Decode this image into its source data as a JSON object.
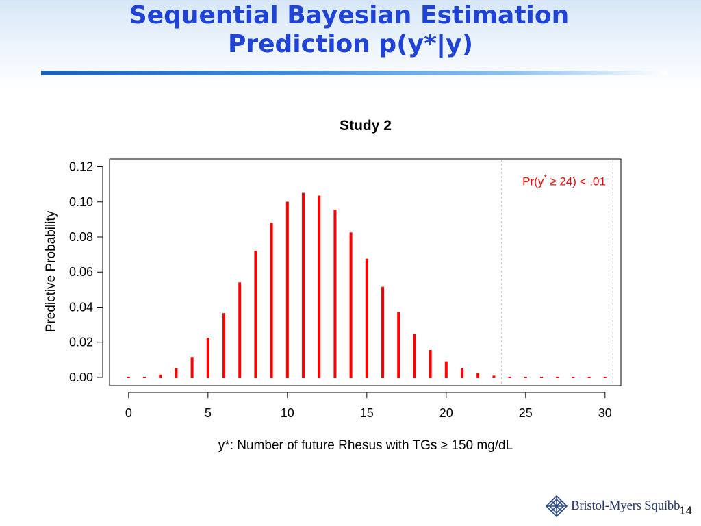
{
  "slide": {
    "title_line1": "Sequential Bayesian Estimation",
    "title_line2": "Prediction p(y*|y)",
    "page_number": "14"
  },
  "logo": {
    "text": "Bristol-Myers Squibb"
  },
  "colors": {
    "title": "#1f43d6",
    "bars": "#ff0000",
    "annotation": "#ff0000"
  },
  "chart_data": {
    "type": "bar",
    "title": "Study 2",
    "xlabel": "y*: Number of future Rhesus with TGs ≥ 150 mg/dL",
    "ylabel": "Predictive Probability",
    "x": [
      0,
      1,
      2,
      3,
      4,
      5,
      6,
      7,
      8,
      9,
      10,
      11,
      12,
      13,
      14,
      15,
      16,
      17,
      18,
      19,
      20,
      21,
      22,
      23,
      24,
      25,
      26,
      27,
      28,
      29,
      30
    ],
    "values": [
      0.0003,
      0.0007,
      0.002,
      0.0055,
      0.012,
      0.023,
      0.037,
      0.0545,
      0.0725,
      0.0885,
      0.1005,
      0.1055,
      0.104,
      0.096,
      0.083,
      0.068,
      0.052,
      0.0375,
      0.025,
      0.016,
      0.0095,
      0.0055,
      0.0028,
      0.0014,
      0.0008,
      0.0004,
      0.0003,
      0.0002,
      0.0002,
      0.0001,
      0.0001
    ],
    "xlim": [
      -1.2,
      31.0
    ],
    "ylim": [
      -0.0047,
      0.1245
    ],
    "xticks": [
      0,
      5,
      10,
      15,
      20,
      25,
      30
    ],
    "yticks": [
      0.0,
      0.02,
      0.04,
      0.06,
      0.08,
      0.1,
      0.12
    ],
    "ytick_labels": [
      "0.00",
      "0.02",
      "0.04",
      "0.06",
      "0.08",
      "0.10",
      "0.12"
    ],
    "reference_lines_x": [
      23.5,
      30.5
    ],
    "annotation": {
      "pre": "Pr(y",
      "sup": "*",
      "post": " ≥ 24) < .01",
      "x": 24.8,
      "y": 0.1095
    },
    "grid": false,
    "legend": "none"
  }
}
